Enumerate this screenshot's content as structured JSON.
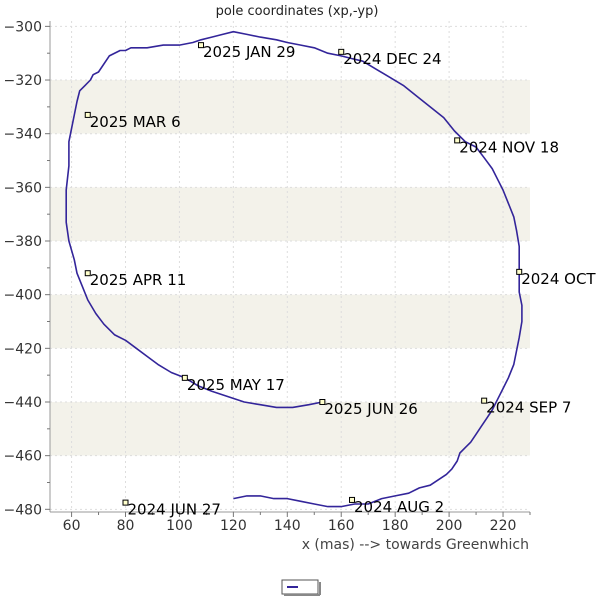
{
  "chart_data": {
    "type": "line",
    "title": "pole coordinates (xp,-yp)",
    "xlabel": "x (mas) --> towards Greenwhich",
    "ylabel": "",
    "xlim": [
      52,
      230
    ],
    "ylim": [
      -481,
      -298
    ],
    "x_ticks": [
      60,
      80,
      100,
      120,
      140,
      160,
      180,
      200,
      220
    ],
    "y_ticks": [
      -300,
      -320,
      -340,
      -360,
      -380,
      -400,
      -420,
      -440,
      -460,
      -480
    ],
    "grid": "y-bands",
    "band_colors": [
      "#f3f2ea",
      "#ffffff"
    ],
    "line_color": "#33259a",
    "series": [
      {
        "x": [
          153,
          148,
          142,
          136,
          130,
          124,
          118,
          112,
          107,
          102,
          97,
          92,
          88,
          84,
          80,
          76,
          72,
          69,
          66,
          64,
          62,
          61,
          59,
          58,
          58,
          58,
          59,
          59,
          60,
          61,
          62,
          63,
          65,
          67,
          68,
          70,
          74,
          78,
          80,
          80,
          82,
          88,
          94,
          100,
          105,
          108,
          112,
          116,
          120,
          125,
          130,
          136,
          140,
          145,
          150,
          155,
          160,
          164,
          168,
          173,
          178,
          183,
          188,
          193,
          198,
          202,
          206,
          210,
          213,
          216,
          218,
          220,
          222,
          224,
          225,
          226,
          226,
          226,
          226,
          227,
          227,
          226,
          225,
          224,
          222,
          220,
          218,
          216,
          214,
          212,
          210,
          208,
          206,
          204,
          203,
          201,
          199,
          196,
          193,
          189,
          185,
          180,
          175,
          170,
          165,
          160,
          155,
          150,
          145,
          140,
          135,
          130,
          125,
          120
        ],
        "y": [
          -440,
          -441,
          -442,
          -442,
          -441,
          -440,
          -438,
          -436,
          -434,
          -431,
          -429,
          -426,
          -423,
          -420,
          -417,
          -415,
          -411,
          -407,
          -402,
          -397,
          -392,
          -387,
          -380,
          -373,
          -366,
          -361,
          -352,
          -343,
          -338,
          -333,
          -328,
          -324,
          -322,
          -320,
          -318,
          -317,
          -311,
          -309,
          -309,
          -309,
          -308,
          -308,
          -307,
          -307,
          -306,
          -305,
          -304,
          -303,
          -302,
          -303,
          -304,
          -305,
          -306,
          -307,
          -308,
          -310,
          -311,
          -312,
          -313,
          -316,
          -319,
          -322,
          -326,
          -330,
          -334,
          -339,
          -343,
          -345,
          -349,
          -353,
          -357,
          -361,
          -366,
          -371,
          -376,
          -382,
          -388,
          -393,
          -399,
          -404,
          -410,
          -416,
          -421,
          -426,
          -431,
          -435,
          -439,
          -443,
          -446,
          -449,
          -452,
          -455,
          -457,
          -459,
          -462,
          -465,
          -467,
          -469,
          -471,
          -472,
          -474,
          -475,
          -476,
          -478,
          -478,
          -479,
          -479,
          -478,
          -477,
          -476,
          -476,
          -475,
          -475,
          -476
        ]
      }
    ],
    "annotations": [
      {
        "label": "2024 JUN 27",
        "x": 80,
        "y": -477.5
      },
      {
        "label": "2024 AUG 2",
        "x": 164,
        "y": -476.5
      },
      {
        "label": "2024 SEP 7",
        "x": 213,
        "y": -439.5
      },
      {
        "label": "2024 OCT",
        "x": 226,
        "y": -391.5
      },
      {
        "label": "2024 NOV 18",
        "x": 203,
        "y": -342.5
      },
      {
        "label": "2024 DEC 24",
        "x": 160,
        "y": -309.5
      },
      {
        "label": "2025 JAN 29",
        "x": 108,
        "y": -307
      },
      {
        "label": "2025 MAR 6",
        "x": 66,
        "y": -333
      },
      {
        "label": "2025 APR 11",
        "x": 66,
        "y": -392
      },
      {
        "label": "2025 MAY 17",
        "x": 102,
        "y": -431
      },
      {
        "label": "2025 JUN 26",
        "x": 153,
        "y": -440
      }
    ]
  }
}
